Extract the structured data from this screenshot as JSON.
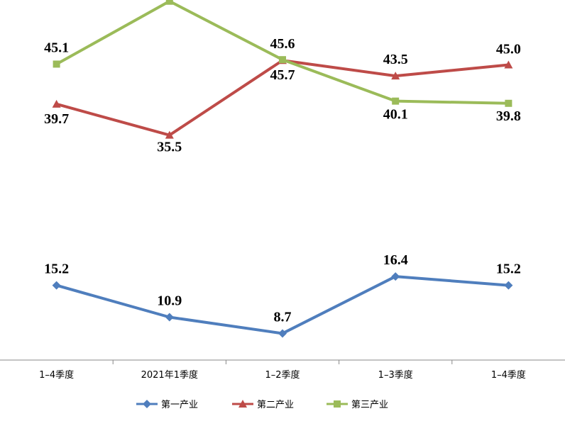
{
  "chart_data": {
    "type": "line",
    "categories": [
      "1–4季度",
      "2021年1季度",
      "1–2季度",
      "1–3季度",
      "1–4季度"
    ],
    "series": [
      {
        "name": "第一产业",
        "values": [
          15.2,
          10.9,
          8.7,
          16.4,
          15.2
        ],
        "color": "#4F7EBD",
        "marker": "diamond"
      },
      {
        "name": "第二产业",
        "values": [
          39.7,
          35.5,
          45.6,
          43.5,
          45.0
        ],
        "color": "#BE4B48",
        "marker": "triangle"
      },
      {
        "name": "第三产业",
        "values": [
          45.1,
          53.6,
          45.7,
          40.1,
          39.8
        ],
        "color": "#9BBB59",
        "marker": "square"
      }
    ],
    "title": "",
    "xlabel": "",
    "ylabel": "",
    "grid": false,
    "legend_position": "bottom"
  }
}
